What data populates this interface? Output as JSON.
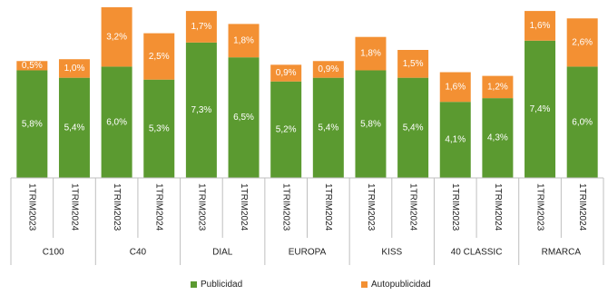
{
  "chart_data": {
    "type": "bar",
    "stacked": true,
    "title": "",
    "xlabel": "",
    "ylabel": "",
    "groups": [
      "C100",
      "C40",
      "DIAL",
      "EUROPA",
      "KISS",
      "40 CLASSIC",
      "RMARCA"
    ],
    "periods": [
      "1TRIM2023",
      "1TRIM2024"
    ],
    "categories": [
      "C100 1TRIM2023",
      "C100 1TRIM2024",
      "C40 1TRIM2023",
      "C40 1TRIM2024",
      "DIAL 1TRIM2023",
      "DIAL 1TRIM2024",
      "EUROPA 1TRIM2023",
      "EUROPA 1TRIM2024",
      "KISS 1TRIM2023",
      "KISS 1TRIM2024",
      "40 CLASSIC 1TRIM2023",
      "40 CLASSIC 1TRIM2024",
      "RMARCA 1TRIM2023",
      "RMARCA 1TRIM2024"
    ],
    "series": [
      {
        "name": "Publicidad",
        "color": "#5b9a30",
        "values": [
          5.8,
          5.4,
          6.0,
          5.3,
          7.3,
          6.5,
          5.2,
          5.4,
          5.8,
          5.4,
          4.1,
          4.3,
          7.4,
          6.0
        ],
        "labels": [
          "5,8%",
          "5,4%",
          "6,0%",
          "5,3%",
          "7,3%",
          "6,5%",
          "5,2%",
          "5,4%",
          "5,8%",
          "5,4%",
          "4,1%",
          "4,3%",
          "7,4%",
          "6,0%"
        ]
      },
      {
        "name": "Autopublicidad",
        "color": "#f39033",
        "values": [
          0.5,
          1.0,
          3.2,
          2.5,
          1.7,
          1.8,
          0.9,
          0.9,
          1.8,
          1.5,
          1.6,
          1.2,
          1.6,
          2.6
        ],
        "labels": [
          "0,5%",
          "1,0%",
          "3,2%",
          "2,5%",
          "1,7%",
          "1,8%",
          "0,9%",
          "0,9%",
          "1,8%",
          "1,5%",
          "1,6%",
          "1,2%",
          "1,6%",
          "2,6%"
        ]
      }
    ],
    "ylim": [
      0,
      9.2
    ],
    "grid": false,
    "legend": "bottom"
  }
}
